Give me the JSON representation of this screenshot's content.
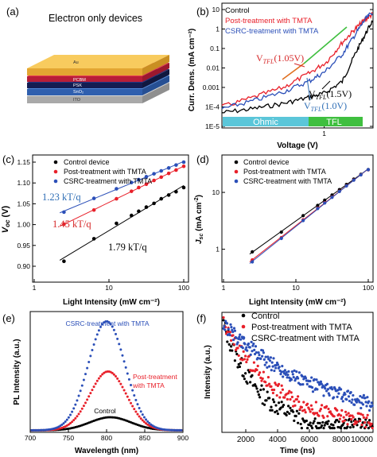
{
  "colors": {
    "control": "#000000",
    "post": "#e8202a",
    "csrc": "#2b4fb8",
    "ohmic_bar": "#5bc6d9",
    "tfl_bar": "#3fbf3f",
    "ann_blue": "#2d6db5",
    "ann_red": "#d62728",
    "au": "#f7c85a",
    "pcbm": "#e6304a",
    "mapbi": "#1f2a6e",
    "sno2": "#3a73c8",
    "ito": "#bdbdbd"
  },
  "panel_labels": {
    "a": "(a)",
    "b": "(b)",
    "c": "(c)",
    "d": "(d)",
    "e": "(e)",
    "f": "(f)"
  },
  "device": {
    "title": "Electron only devices",
    "layers": [
      "Au",
      "PCBM",
      "PSK",
      "SnO₂",
      "ITO"
    ]
  },
  "chart_data": [
    {
      "panel": "b",
      "type": "line",
      "xlabel": "Voltage (V)",
      "ylabel": "Curr. Dens. (mA cm⁻²)",
      "xscale": "log",
      "yscale": "log",
      "xlim": [
        0.1,
        3
      ],
      "ylim": [
        1e-05,
        10
      ],
      "x_ticks": [
        "1"
      ],
      "y_ticks": [
        "1E-5",
        "1E-4",
        "0.001",
        "0.01",
        "0.1",
        "1",
        "10"
      ],
      "legend": [
        "Control",
        "Post-treatment with TMTA",
        "CSRC-treatment with TMTA"
      ],
      "regions": [
        "Ohmic",
        "TFL"
      ],
      "annotations": [
        "V_TFL(1.05V)",
        "V_TFL(1.5V)",
        "V_TFL(1.0V)"
      ],
      "series": [
        {
          "name": "Control",
          "x": [
            0.1,
            0.2,
            0.4,
            0.7,
            1.0,
            1.5,
            2.0,
            2.5,
            3.0
          ],
          "y": [
            5e-05,
            8e-05,
            0.00015,
            0.0003,
            0.0005,
            0.002,
            0.05,
            0.5,
            3
          ]
        },
        {
          "name": "Post-treatment with TMTA",
          "x": [
            0.1,
            0.2,
            0.4,
            0.7,
            1.05,
            1.5,
            2.0,
            2.5,
            3.0
          ],
          "y": [
            0.0001,
            0.0003,
            0.001,
            0.005,
            0.02,
            0.2,
            1.0,
            3.0,
            6.0
          ]
        },
        {
          "name": "CSRC-treatment with TMTA",
          "x": [
            0.1,
            0.2,
            0.4,
            0.7,
            1.0,
            1.5,
            2.0,
            2.5,
            3.0
          ],
          "y": [
            8e-05,
            0.0002,
            0.0006,
            0.002,
            0.006,
            0.05,
            0.5,
            3.0,
            8.0
          ]
        }
      ]
    },
    {
      "panel": "c",
      "type": "scatter",
      "xlabel": "Light Intensity (mW cm⁻²)",
      "ylabel": "V_oc (V)",
      "xscale": "log",
      "xlim": [
        1,
        100
      ],
      "ylim": [
        0.9,
        1.15
      ],
      "x_ticks": [
        "1",
        "10",
        "100"
      ],
      "y_ticks": [
        "0.90",
        "0.95",
        "1.00",
        "1.05",
        "1.10",
        "1.15"
      ],
      "legend": [
        "Control device",
        "Post-treatment with TMTA",
        "CSRC-treatment with TMTA"
      ],
      "slope_labels": [
        "1.23 kT/q",
        "1.45 kT/q",
        "1.79 kT/q"
      ],
      "series": [
        {
          "name": "Control device",
          "x": [
            2.5,
            6.3,
            12.6,
            20,
            25,
            31.6,
            40,
            50,
            63,
            79,
            100
          ],
          "y": [
            0.912,
            0.966,
            1.003,
            1.022,
            1.032,
            1.042,
            1.051,
            1.062,
            1.071,
            1.079,
            1.089
          ]
        },
        {
          "name": "Post-treatment with TMTA",
          "x": [
            2.5,
            6.3,
            12.6,
            20,
            25,
            31.6,
            40,
            50,
            63,
            79,
            100
          ],
          "y": [
            1.001,
            1.035,
            1.062,
            1.08,
            1.089,
            1.097,
            1.106,
            1.114,
            1.123,
            1.131,
            1.14
          ]
        },
        {
          "name": "CSRC-treatment with TMTA",
          "x": [
            2.5,
            6.3,
            12.6,
            20,
            25,
            31.6,
            40,
            50,
            63,
            79,
            100
          ],
          "y": [
            1.03,
            1.063,
            1.086,
            1.101,
            1.108,
            1.115,
            1.122,
            1.129,
            1.136,
            1.143,
            1.15
          ]
        }
      ]
    },
    {
      "panel": "d",
      "type": "scatter",
      "xlabel": "Light Intensity (mW cm⁻²)",
      "ylabel": "J_sc (mA cm⁻²)",
      "xscale": "log",
      "yscale": "log",
      "xlim": [
        1,
        100
      ],
      "ylim": [
        0.3,
        40
      ],
      "x_ticks": [
        "1",
        "10",
        "100"
      ],
      "y_ticks": [
        "1",
        "10"
      ],
      "legend": [
        "Control device",
        "Post-treatment with TMTA",
        "CSRC-treatment with TMTA"
      ],
      "series": [
        {
          "name": "Control device",
          "x": [
            2.5,
            6.3,
            12.6,
            20,
            25,
            31.6,
            40,
            50,
            63,
            79,
            100
          ],
          "y": [
            0.9,
            2.0,
            3.9,
            5.9,
            7.3,
            9.0,
            11.2,
            13.8,
            17.1,
            20.8,
            25.2
          ]
        },
        {
          "name": "Post-treatment with TMTA",
          "x": [
            2.5,
            6.3,
            12.6,
            20,
            25,
            31.6,
            40,
            50,
            63,
            79,
            100
          ],
          "y": [
            0.65,
            1.6,
            3.3,
            5.3,
            6.6,
            8.3,
            10.5,
            13.1,
            16.5,
            20.4,
            25.0
          ]
        },
        {
          "name": "CSRC-treatment with TMTA",
          "x": [
            2.5,
            6.3,
            12.6,
            20,
            25,
            31.6,
            40,
            50,
            63,
            79,
            100
          ],
          "y": [
            0.6,
            1.55,
            3.2,
            5.2,
            6.5,
            8.2,
            10.4,
            13.0,
            16.4,
            20.3,
            25.1
          ]
        }
      ]
    },
    {
      "panel": "e",
      "type": "line",
      "xlabel": "Wavelength (nm)",
      "ylabel": "PL Intensity (a.u.)",
      "xlim": [
        700,
        900
      ],
      "ylim": [
        0,
        1.05
      ],
      "x_ticks": [
        "700",
        "750",
        "800",
        "850",
        "900"
      ],
      "labels": [
        "CSRC-treatment with TMTA",
        "Post-treatment with TMTA",
        "Control"
      ],
      "series": [
        {
          "name": "Control",
          "peak_x": 805,
          "peak_y": 0.12,
          "width": 27
        },
        {
          "name": "Post-treatment with TMTA",
          "peak_x": 802,
          "peak_y": 0.54,
          "width": 24
        },
        {
          "name": "CSRC-treatment with TMTA",
          "peak_x": 800,
          "peak_y": 1.0,
          "width": 24
        }
      ]
    },
    {
      "panel": "f",
      "type": "scatter",
      "xlabel": "Time (ns)",
      "ylabel": "Intensity (a.u.)",
      "xlim": [
        500,
        10000
      ],
      "ylim": [
        0,
        1.0
      ],
      "x_ticks": [
        "2000",
        "4000",
        "6000",
        "8000",
        "10000"
      ],
      "legend": [
        "Control",
        "Post-treatment with TMTA",
        "CSRC-treatment with TMTA"
      ],
      "series": [
        {
          "name": "Control",
          "decay_ns": 2200
        },
        {
          "name": "Post-treatment with TMTA",
          "decay_ns": 3500
        },
        {
          "name": "CSRC-treatment with TMTA",
          "decay_ns": 6500
        }
      ]
    }
  ]
}
